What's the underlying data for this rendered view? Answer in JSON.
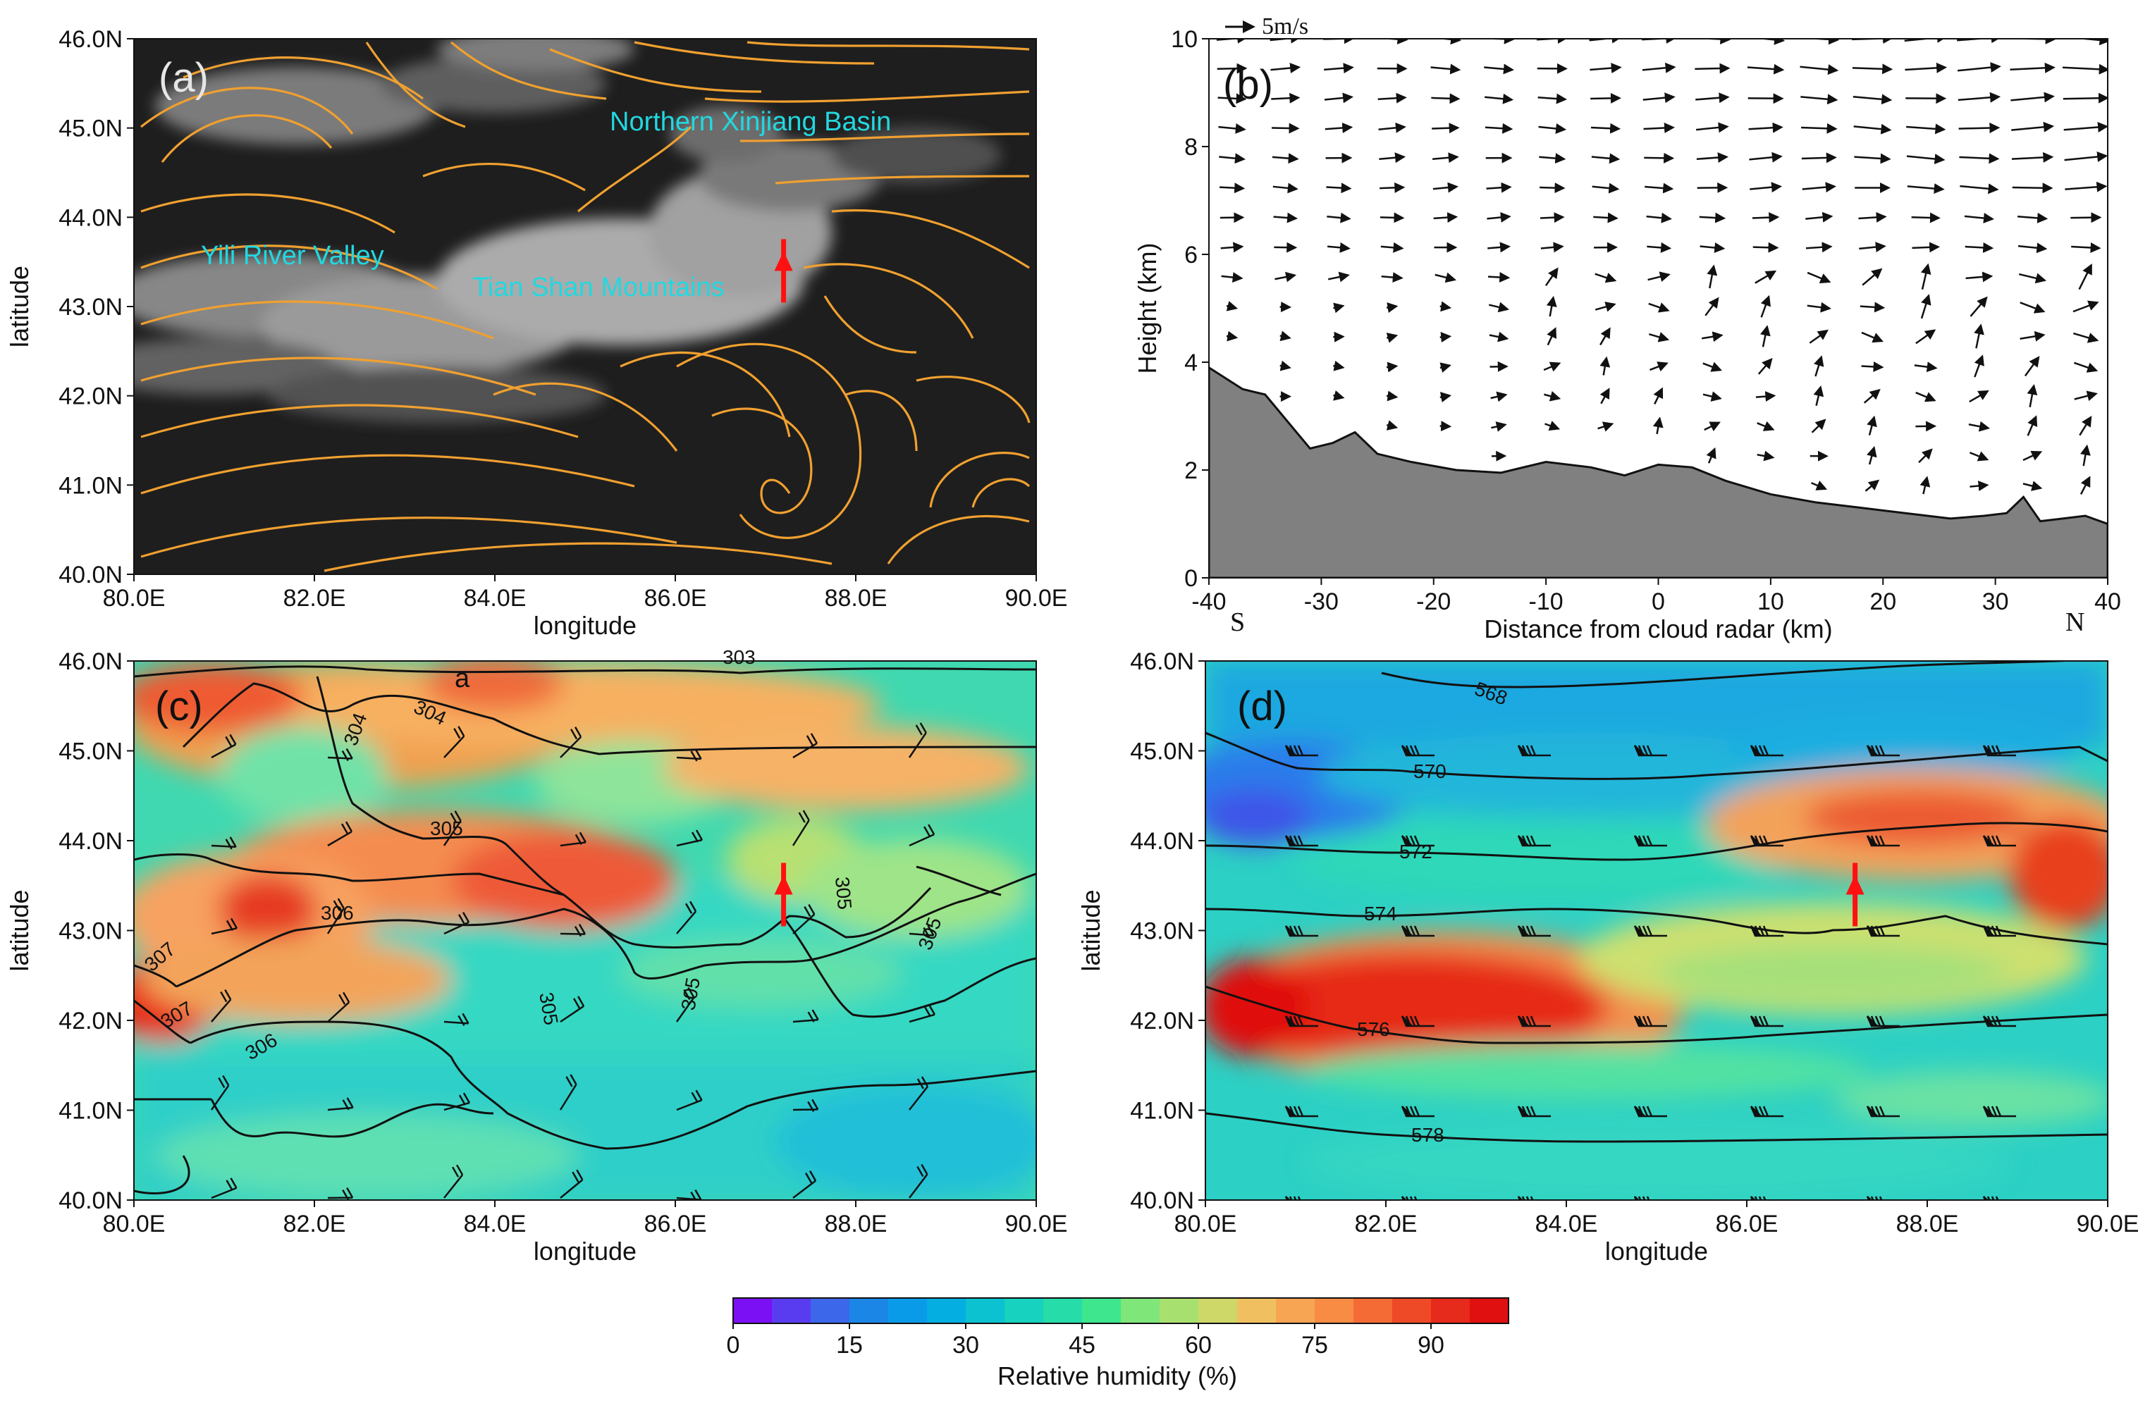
{
  "panels": {
    "a": {
      "label": "(a)",
      "region_labels": [
        "Northern Xinjiang Basin",
        "Yili River Valley",
        "Tian Shan Mountains"
      ],
      "region_color": "#22d8e0",
      "streamline_color": "#f0a030",
      "marker_color": "#ff1111"
    },
    "b": {
      "label": "(b)",
      "scale_label": "5m/s",
      "south": "S",
      "north": "N",
      "terrain_color": "#808080"
    },
    "c": {
      "label": "(c)",
      "annotation": "a",
      "contour_labels": [
        "303",
        "304",
        "304",
        "305",
        "305",
        "305",
        "305",
        "305",
        "306",
        "306",
        "307",
        "307"
      ],
      "marker_color": "#ff1111"
    },
    "d": {
      "label": "(d)",
      "contour_labels": [
        "568",
        "570",
        "572",
        "574",
        "576",
        "578"
      ],
      "marker_color": "#ff1111"
    }
  },
  "chart_data": [
    {
      "id": "a",
      "type": "other",
      "xlabel": "longitude",
      "ylabel": "latitude",
      "xticks": [
        "80.0E",
        "82.0E",
        "84.0E",
        "86.0E",
        "88.0E",
        "90.0E"
      ],
      "yticks": [
        "40.0N",
        "41.0N",
        "42.0N",
        "43.0N",
        "44.0N",
        "45.0N",
        "46.0N"
      ],
      "xlim": [
        80,
        90
      ],
      "ylim": [
        40,
        46
      ],
      "marker": {
        "lon": 87.2,
        "lat": 43.4
      }
    },
    {
      "id": "b",
      "type": "other",
      "xlabel": "Distance from cloud radar (km)",
      "ylabel": "Height (km)",
      "xticks": [
        "-40",
        "-30",
        "-20",
        "-10",
        "0",
        "10",
        "20",
        "30",
        "40"
      ],
      "yticks": [
        "0",
        "2",
        "4",
        "6",
        "8",
        "10"
      ],
      "xlim": [
        -40,
        40
      ],
      "ylim": [
        0,
        10
      ],
      "terrain": {
        "x": [
          -40,
          -37,
          -35,
          -33,
          -31,
          -29,
          -27,
          -25,
          -22,
          -18,
          -14,
          -10,
          -6,
          -3,
          0,
          3,
          6,
          10,
          14,
          18,
          22,
          26,
          29,
          31,
          32.5,
          34,
          36,
          38,
          40
        ],
        "y": [
          3.9,
          3.5,
          3.4,
          2.9,
          2.4,
          2.5,
          2.7,
          2.3,
          2.15,
          2.0,
          1.95,
          2.15,
          2.05,
          1.9,
          2.1,
          2.05,
          1.8,
          1.55,
          1.4,
          1.3,
          1.2,
          1.1,
          1.15,
          1.2,
          1.5,
          1.05,
          1.1,
          1.15,
          1.0
        ]
      }
    },
    {
      "id": "c",
      "type": "heatmap",
      "xlabel": "longitude",
      "ylabel": "latitude",
      "xticks": [
        "80.0E",
        "82.0E",
        "84.0E",
        "86.0E",
        "88.0E",
        "90.0E"
      ],
      "yticks": [
        "40.0N",
        "41.0N",
        "42.0N",
        "43.0N",
        "44.0N",
        "45.0N",
        "46.0N"
      ],
      "xlim": [
        80,
        90
      ],
      "ylim": [
        40,
        46
      ],
      "marker": {
        "lon": 87.2,
        "lat": 43.4
      }
    },
    {
      "id": "d",
      "type": "heatmap",
      "xlabel": "longitude",
      "ylabel": "latitude",
      "xticks": [
        "80.0E",
        "82.0E",
        "84.0E",
        "86.0E",
        "88.0E",
        "90.0E"
      ],
      "yticks": [
        "40.0N",
        "41.0N",
        "42.0N",
        "43.0N",
        "44.0N",
        "45.0N",
        "46.0N"
      ],
      "xlim": [
        80,
        90
      ],
      "ylim": [
        40,
        46
      ],
      "marker": {
        "lon": 87.2,
        "lat": 43.4
      }
    },
    {
      "id": "colorbar",
      "type": "other",
      "label": "Relative humidity (%)",
      "range": [
        0,
        100
      ],
      "ticks": [
        "0",
        "15",
        "30",
        "45",
        "60",
        "75",
        "90"
      ],
      "colors": [
        "#7b10f5",
        "#5a3cf0",
        "#3d67eb",
        "#1c86e6",
        "#0a9be8",
        "#05aee0",
        "#0cc2d0",
        "#16d2be",
        "#26dca8",
        "#3ee68e",
        "#7fe67a",
        "#a8e070",
        "#cdd868",
        "#f0c060",
        "#f7a552",
        "#f98c45",
        "#f56b35",
        "#ef4a28",
        "#e62a1c",
        "#e01010"
      ]
    }
  ]
}
